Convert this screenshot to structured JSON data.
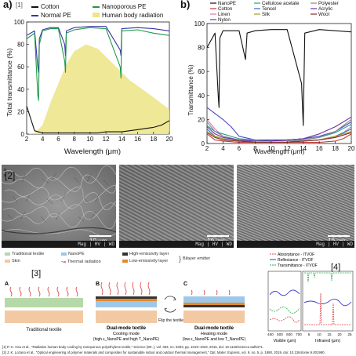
{
  "panel_a": {
    "letter": "a)",
    "ref": "[1]",
    "legend": [
      "Cotton",
      "Normal PE",
      "Nanoporous PE",
      "Human body radiation"
    ],
    "ylabel": "Total transmittance (%)",
    "xlabel": "Wavelength (μm)"
  },
  "panel_b": {
    "letter": "b)",
    "legend": [
      "NanoPE",
      "Cotton",
      "Linen",
      "Nylon",
      "Cellulose acetate",
      "Tencel",
      "Silk",
      "Polyester",
      "Acrylic",
      "Wool"
    ],
    "ylabel": "Transmittance (%)",
    "xlabel": "Wavelength (μm)"
  },
  "chart_data": [
    {
      "type": "line",
      "title": "",
      "xlabel": "Wavelength (μm)",
      "ylabel": "Total transmittance (%)",
      "xlim": [
        2,
        20
      ],
      "ylim": [
        0,
        100
      ],
      "xticks": [
        2,
        4,
        6,
        8,
        10,
        12,
        14,
        16,
        18,
        20
      ],
      "yticks": [
        0,
        20,
        40,
        60,
        80,
        100
      ],
      "legend_position": "top",
      "series": [
        {
          "name": "Cotton",
          "color": "#111111",
          "x": [
            2,
            3,
            4,
            5,
            6,
            7,
            8,
            9,
            10,
            11,
            12,
            13,
            14,
            15,
            16,
            17,
            18,
            19,
            20
          ],
          "y": [
            25,
            3,
            1,
            1,
            1,
            1,
            1,
            1,
            1,
            1,
            2,
            2,
            2,
            3,
            4,
            5,
            6,
            8,
            12
          ]
        },
        {
          "name": "Normal PE",
          "color": "#3a33a8",
          "x": [
            2,
            3,
            3.4,
            3.5,
            3.6,
            4,
            5,
            6,
            6.8,
            6.9,
            7,
            8,
            10,
            12,
            13.8,
            13.9,
            14,
            16,
            18,
            20
          ],
          "y": [
            88,
            92,
            60,
            55,
            85,
            93,
            95,
            95,
            80,
            70,
            92,
            95,
            96,
            96,
            75,
            70,
            94,
            95,
            94,
            92
          ]
        },
        {
          "name": "Nanoporous PE",
          "color": "#1f9a4a",
          "x": [
            2,
            3,
            3.4,
            3.5,
            3.6,
            4,
            5,
            6,
            6.8,
            6.9,
            7,
            8,
            10,
            12,
            13.8,
            13.9,
            14,
            16,
            18,
            20
          ],
          "y": [
            85,
            90,
            35,
            30,
            80,
            92,
            94,
            94,
            65,
            55,
            90,
            93,
            95,
            94,
            60,
            50,
            92,
            93,
            90,
            88
          ]
        },
        {
          "name": "Human body radiation",
          "color": "#ece58c",
          "x": [
            2,
            3,
            4,
            5,
            7,
            8,
            9.5,
            11,
            13,
            15,
            17,
            20
          ],
          "y": [
            0,
            1,
            8,
            28,
            62,
            74,
            80,
            76,
            62,
            48,
            38,
            22
          ]
        }
      ]
    },
    {
      "type": "line",
      "title": "",
      "xlabel": "Wavelength (μm)",
      "ylabel": "Transmittance (%)",
      "xlim": [
        2,
        20
      ],
      "ylim": [
        0,
        100
      ],
      "xticks": [
        2,
        4,
        6,
        8,
        10,
        12,
        14,
        16,
        18,
        20
      ],
      "yticks": [
        0,
        20,
        40,
        60,
        80,
        100
      ],
      "legend_position": "top",
      "series": [
        {
          "name": "NanoPE",
          "color": "#111111",
          "x": [
            2,
            3,
            3.4,
            3.5,
            3.6,
            4,
            6,
            6.8,
            7,
            8,
            10,
            12,
            13.8,
            14,
            14.2,
            16,
            18,
            20
          ],
          "y": [
            80,
            92,
            40,
            30,
            88,
            94,
            94,
            70,
            92,
            94,
            95,
            95,
            50,
            15,
            92,
            95,
            94,
            93
          ]
        },
        {
          "name": "Cotton",
          "color": "#c23a3a",
          "x": [
            2,
            3,
            4,
            6,
            8,
            10,
            12,
            14,
            16,
            18,
            19,
            20
          ],
          "y": [
            8,
            3,
            2,
            1,
            1,
            1,
            1,
            1,
            1,
            2,
            4,
            8
          ]
        },
        {
          "name": "Linen",
          "color": "#d37ab0",
          "x": [
            2,
            3,
            4,
            6,
            8,
            10,
            12,
            14,
            16,
            18,
            19,
            20
          ],
          "y": [
            20,
            12,
            6,
            3,
            2,
            2,
            2,
            2,
            3,
            5,
            9,
            14
          ]
        },
        {
          "name": "Nylon",
          "color": "#4a46c4",
          "x": [
            2,
            3,
            4,
            5,
            6,
            8,
            10,
            12,
            14,
            16,
            18,
            20
          ],
          "y": [
            30,
            25,
            20,
            14,
            6,
            3,
            3,
            3,
            4,
            6,
            10,
            18
          ]
        },
        {
          "name": "Cellulose acetate",
          "color": "#2a9a9a",
          "x": [
            2,
            3,
            4,
            6,
            8,
            10,
            12,
            14,
            16,
            18,
            20
          ],
          "y": [
            15,
            10,
            8,
            4,
            3,
            2,
            2,
            3,
            5,
            9,
            16
          ]
        },
        {
          "name": "Tencel",
          "color": "#2a6fc4",
          "x": [
            2,
            3,
            4,
            6,
            8,
            10,
            12,
            14,
            16,
            18,
            20
          ],
          "y": [
            12,
            6,
            4,
            2,
            2,
            2,
            2,
            2,
            3,
            6,
            12
          ]
        },
        {
          "name": "Silk",
          "color": "#a0a020",
          "x": [
            2,
            3,
            4,
            6,
            8,
            10,
            12,
            14,
            16,
            18,
            20
          ],
          "y": [
            10,
            6,
            4,
            2,
            1,
            1,
            1,
            2,
            3,
            6,
            10
          ]
        },
        {
          "name": "Polyester",
          "color": "#8a8a8a",
          "x": [
            2,
            3,
            4,
            6,
            8,
            10,
            12,
            14,
            16,
            18,
            20
          ],
          "y": [
            18,
            10,
            6,
            3,
            2,
            2,
            2,
            3,
            5,
            10,
            20
          ]
        },
        {
          "name": "Acrylic",
          "color": "#6b2fa0",
          "x": [
            2,
            3,
            4,
            6,
            8,
            10,
            12,
            14,
            16,
            18,
            20
          ],
          "y": [
            14,
            8,
            5,
            3,
            2,
            2,
            3,
            4,
            8,
            14,
            22
          ]
        },
        {
          "name": "Wool",
          "color": "#8a2a2a",
          "x": [
            2,
            3,
            4,
            6,
            8,
            10,
            12,
            14,
            16,
            18,
            20
          ],
          "y": [
            9,
            5,
            3,
            2,
            1,
            1,
            1,
            2,
            3,
            5,
            9
          ]
        }
      ]
    },
    {
      "type": "line",
      "title": "",
      "xlabel": "",
      "ylabel": "",
      "legend_position": "top",
      "axis_labels_below": [
        "Visible (μm)",
        "Infrared (μm)"
      ],
      "series": [
        {
          "name": "Absorptance - ITVOF",
          "color": "#e24a4a",
          "style": "dashed"
        },
        {
          "name": "Reflectance - ITVOF",
          "color": "#3a3ad0",
          "style": "solid"
        },
        {
          "name": "Transmittance - ITVOF",
          "color": "#27a84a",
          "style": "dashed"
        }
      ]
    }
  ],
  "sem": {
    "ref": "[2]",
    "images": [
      {
        "scale": "10 μm",
        "footer": "Mag  |  HV  |  WD"
      },
      {
        "scale": "10 μm",
        "footer": "Mag  |  HV  |  WD"
      },
      {
        "scale": "10 μm",
        "footer": "Mag  |  HV  |  WD"
      }
    ]
  },
  "panel3": {
    "ref": "[3]",
    "legend": [
      "Traditional textile",
      "Skin",
      "NanoPE",
      "Thermal radiation",
      "High-emissivity layer",
      "Low-emissivity layer",
      "Bilayer emitter"
    ],
    "labels": {
      "A": "A",
      "B": "B",
      "C": "C",
      "a_caption": "Traditional textile",
      "b_caption": "Dual-mode textile",
      "b_sub1": "Cooling mode",
      "b_sub2": "(high ε_NanoPE and high T_NanoPE)",
      "c_caption": "Dual-mode textile",
      "c_sub1": "Heating mode",
      "c_sub2": "(low ε_NanoPE and low T_NanoPE)",
      "flip": "Flip the textile"
    }
  },
  "panel4": {
    "ref": "[4]",
    "legend": [
      "Absorptance - ITVOF",
      "Reflectance - ITVOF",
      "Transmittance - ITVOF"
    ],
    "xlabel_visible": "Visible (μm)",
    "xlabel_ir": "Infrared (μm)",
    "xticks_visible": [
      "400",
      "500",
      "600",
      "700"
    ],
    "xticks_ir": [
      "5",
      "10",
      "15",
      "20",
      "25"
    ]
  },
  "references": [
    "[1] P.-C. Hsu et al., \"Radiative human body cooling by nanoporous polyethylene textile,\" Science (80-.), vol. 353, no. 6303, pp. 1019–1023, 2016, doi: 10.1126/science.aaf5471.",
    "[2] J. K. Lozano et al., \"Optical engineering of polymer materials and composites for sustainable indoor and outdoor thermal management,\" Opt. Mater. Express, vol. 9, no. 5, p. 1990, 2019, doi: 10.1364/ome.9.001990."
  ]
}
